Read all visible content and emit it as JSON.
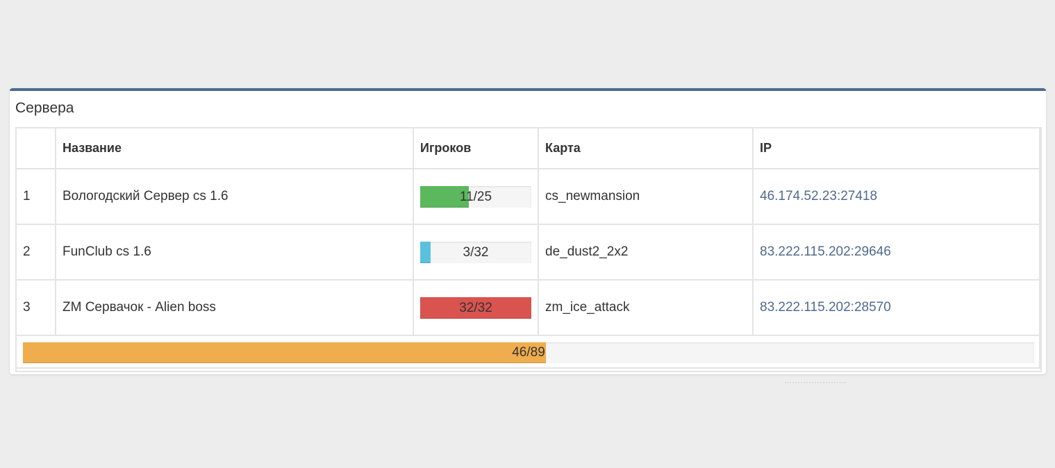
{
  "panel": {
    "title": "Сервера"
  },
  "table": {
    "headers": {
      "num": "",
      "name": "Название",
      "players": "Игроков",
      "map": "Карта",
      "ip": "IP"
    },
    "rows": [
      {
        "num": "1",
        "name": "Вологодский Сервер cs 1.6",
        "players_text": "11/25",
        "players": 11,
        "max_players": 25,
        "bar_color": "#5cb85c",
        "map": "cs_newmansion",
        "ip": "46.174.52.23:27418"
      },
      {
        "num": "2",
        "name": "FunClub cs 1.6",
        "players_text": "3/32",
        "players": 3,
        "max_players": 32,
        "bar_color": "#5bc0de",
        "map": "de_dust2_2x2",
        "ip": "83.222.115.202:29646"
      },
      {
        "num": "3",
        "name": "ZM Сервачок - Alien boss",
        "players_text": "32/32",
        "players": 32,
        "max_players": 32,
        "bar_color": "#d9534f",
        "map": "zm_ice_attack",
        "ip": "83.222.115.202:28570"
      }
    ],
    "total": {
      "text": "46/89",
      "players": 46,
      "max_players": 89,
      "bar_color": "#f0ad4e"
    }
  },
  "colors": {
    "accent": "#4e6a8e",
    "page_background": "#ededed"
  }
}
